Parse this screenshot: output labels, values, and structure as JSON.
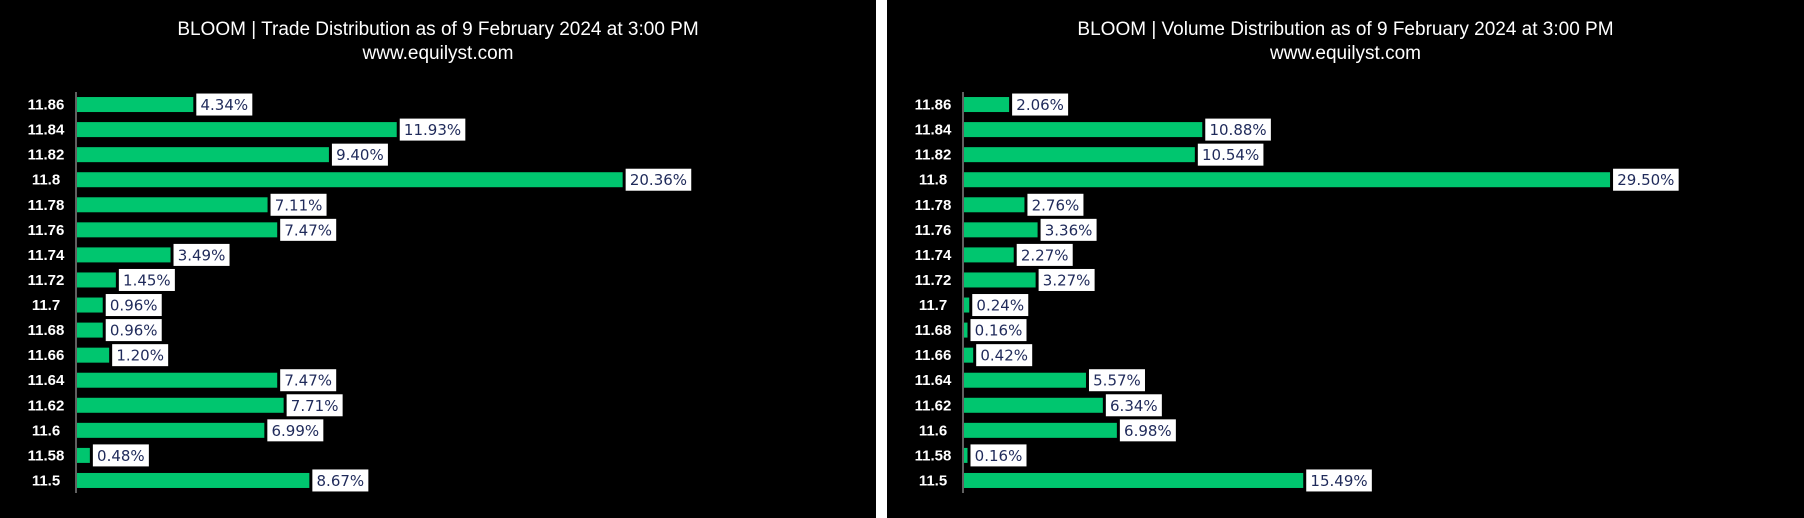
{
  "colors": {
    "background": "#000000",
    "bar": "#00c66f",
    "label_bg": "#ffffff",
    "label_text": "#1f2a5a",
    "text": "#ffffff"
  },
  "charts": [
    {
      "title": "BLOOM | Trade Distribution as of 9 February 2024 at 3:00 PM",
      "subtitle": "www.equilyst.com"
    },
    {
      "title": "BLOOM | Volume Distribution as of 9 February 2024 at 3:00 PM",
      "subtitle": "www.equilyst.com"
    }
  ],
  "chart_data": [
    {
      "type": "bar",
      "orientation": "horizontal",
      "title": "BLOOM | Trade Distribution as of 9 February 2024 at 3:00 PM",
      "subtitle": "www.equilyst.com",
      "categories": [
        "11.86",
        "11.84",
        "11.82",
        "11.8",
        "11.78",
        "11.76",
        "11.74",
        "11.72",
        "11.7",
        "11.68",
        "11.66",
        "11.64",
        "11.62",
        "11.6",
        "11.58",
        "11.5"
      ],
      "values": [
        4.34,
        11.93,
        9.4,
        20.36,
        7.11,
        7.47,
        3.49,
        1.45,
        0.96,
        0.96,
        1.2,
        7.47,
        7.71,
        6.99,
        0.48,
        8.67
      ],
      "labels": [
        "4.34%",
        "11.93%",
        "9.40%",
        "20.36%",
        "7.11%",
        "7.47%",
        "3.49%",
        "1.45%",
        "0.96%",
        "0.96%",
        "1.20%",
        "7.47%",
        "7.71%",
        "6.99%",
        "0.48%",
        "8.67%"
      ],
      "unit": "%",
      "grid": false,
      "legend": "none"
    },
    {
      "type": "bar",
      "orientation": "horizontal",
      "title": "BLOOM | Volume Distribution as of 9 February 2024 at 3:00 PM",
      "subtitle": "www.equilyst.com",
      "categories": [
        "11.86",
        "11.84",
        "11.82",
        "11.8",
        "11.78",
        "11.76",
        "11.74",
        "11.72",
        "11.7",
        "11.68",
        "11.66",
        "11.64",
        "11.62",
        "11.6",
        "11.58",
        "11.5"
      ],
      "values": [
        2.06,
        10.88,
        10.54,
        29.5,
        2.76,
        3.36,
        2.27,
        3.27,
        0.24,
        0.16,
        0.42,
        5.57,
        6.34,
        6.98,
        0.16,
        15.49
      ],
      "labels": [
        "2.06%",
        "10.88%",
        "10.54%",
        "29.50%",
        "2.76%",
        "3.36%",
        "2.27%",
        "3.27%",
        "0.24%",
        "0.16%",
        "0.42%",
        "5.57%",
        "6.34%",
        "6.98%",
        "0.16%",
        "15.49%"
      ],
      "unit": "%",
      "grid": false,
      "legend": "none"
    }
  ]
}
